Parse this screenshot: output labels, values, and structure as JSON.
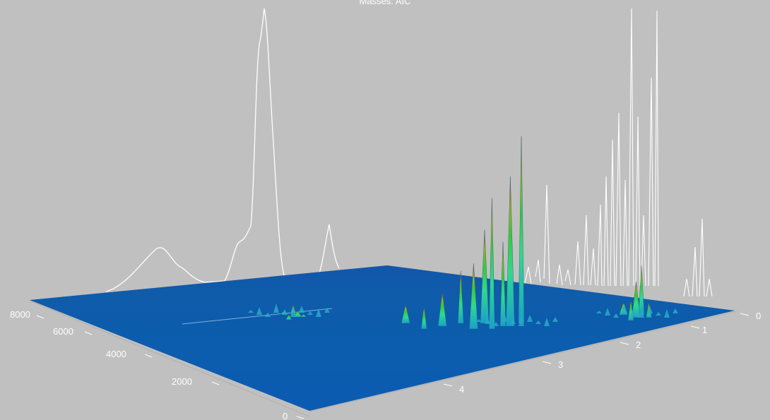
{
  "chart_data": {
    "type": "surface",
    "title": "Masses:  AIC",
    "left_axis": {
      "ticks": [
        "8000",
        "6000",
        "4000",
        "2000",
        "0"
      ]
    },
    "right_axis": {
      "ticks": [
        "0",
        "1",
        "2",
        "3",
        "4"
      ]
    },
    "colors": {
      "background": "#c0c0c0",
      "floor": "#0a58b0",
      "trace": "#ffffff",
      "gradient": [
        "#1aa0c8",
        "#30d890",
        "#3cc83c",
        "#9ab020",
        "#c83018"
      ]
    },
    "peak_clusters": [
      {
        "name": "",
        "peaks": [
          {
            "x": 4.25,
            "height": 0.22
          },
          {
            "x": 4.22,
            "height": 0.14
          },
          {
            "x": 4.28,
            "height": 0.12
          },
          {
            "x": 4.31,
            "height": 0.07
          },
          {
            "x": 4.18,
            "height": 0.06
          }
        ]
      },
      {
        "name": "",
        "peaks": [
          {
            "x": 2.62,
            "height": 1.0
          },
          {
            "x": 2.68,
            "height": 0.8
          },
          {
            "x": 2.78,
            "height": 0.7
          },
          {
            "x": 2.82,
            "height": 0.5
          },
          {
            "x": 2.72,
            "height": 0.45
          },
          {
            "x": 2.88,
            "height": 0.35
          },
          {
            "x": 2.95,
            "height": 0.28
          },
          {
            "x": 3.05,
            "height": 0.18
          },
          {
            "x": 3.15,
            "height": 0.12
          },
          {
            "x": 3.25,
            "height": 0.1
          }
        ]
      },
      {
        "name": "",
        "peaks": [
          {
            "x": 0.95,
            "height": 0.48
          },
          {
            "x": 1.0,
            "height": 0.35
          },
          {
            "x": 1.05,
            "height": 0.2
          },
          {
            "x": 1.12,
            "height": 0.12
          },
          {
            "x": 0.88,
            "height": 0.15
          }
        ]
      }
    ]
  }
}
